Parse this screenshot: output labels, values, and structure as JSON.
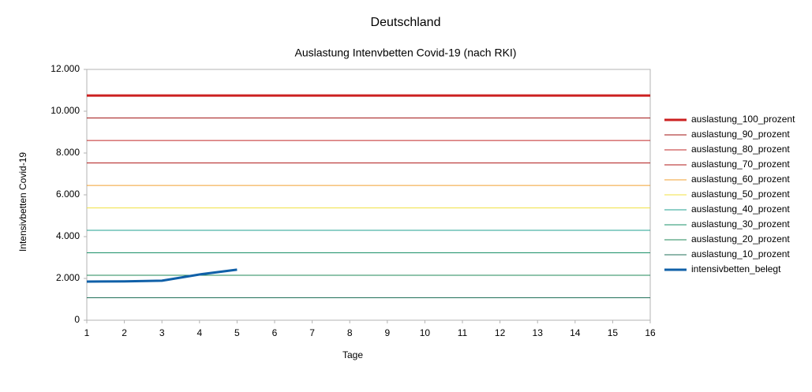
{
  "chart_data": {
    "type": "line",
    "title": "Deutschland",
    "subtitle": "Auslastung Intenvbetten Covid-19 (nach RKI)",
    "x_label": "Tage",
    "y_label": "Intensivbetten Covid-19",
    "x": [
      1,
      2,
      3,
      4,
      5,
      6,
      7,
      8,
      9,
      10,
      11,
      12,
      13,
      14,
      15,
      16
    ],
    "xlim": [
      1,
      16
    ],
    "xticks": [
      1,
      2,
      3,
      4,
      5,
      6,
      7,
      8,
      9,
      10,
      11,
      12,
      13,
      14,
      15,
      16
    ],
    "ylim": [
      0,
      12000
    ],
    "yticks": [
      0,
      {
        "value": 2000,
        "label": "2.000"
      },
      {
        "value": 4000,
        "label": "4.000"
      },
      {
        "value": 6000,
        "label": "6.000"
      },
      {
        "value": 8000,
        "label": "8.000"
      },
      {
        "value": 10000,
        "label": "10.000"
      },
      {
        "value": 12000,
        "label": "12.000"
      }
    ],
    "legend": "right",
    "series": [
      {
        "name": "auslastung_100_prozent",
        "color": "#cc2020",
        "line_width": 3,
        "values": [
          10750,
          10750,
          10750,
          10750,
          10750,
          10750,
          10750,
          10750,
          10750,
          10750,
          10750,
          10750,
          10750,
          10750,
          10750,
          10750
        ]
      },
      {
        "name": "auslastung_90_prozent",
        "color": "#a01010",
        "line_width": 1,
        "values": [
          9675,
          9675,
          9675,
          9675,
          9675,
          9675,
          9675,
          9675,
          9675,
          9675,
          9675,
          9675,
          9675,
          9675,
          9675,
          9675
        ]
      },
      {
        "name": "auslastung_80_prozent",
        "color": "#c02828",
        "line_width": 1,
        "values": [
          8600,
          8600,
          8600,
          8600,
          8600,
          8600,
          8600,
          8600,
          8600,
          8600,
          8600,
          8600,
          8600,
          8600,
          8600,
          8600
        ]
      },
      {
        "name": "auslastung_70_prozent",
        "color": "#b01818",
        "line_width": 1,
        "values": [
          7525,
          7525,
          7525,
          7525,
          7525,
          7525,
          7525,
          7525,
          7525,
          7525,
          7525,
          7525,
          7525,
          7525,
          7525,
          7525
        ]
      },
      {
        "name": "auslastung_60_prozent",
        "color": "#f0a030",
        "line_width": 1,
        "values": [
          6450,
          6450,
          6450,
          6450,
          6450,
          6450,
          6450,
          6450,
          6450,
          6450,
          6450,
          6450,
          6450,
          6450,
          6450,
          6450
        ]
      },
      {
        "name": "auslastung_50_prozent",
        "color": "#f0e040",
        "line_width": 1,
        "values": [
          5375,
          5375,
          5375,
          5375,
          5375,
          5375,
          5375,
          5375,
          5375,
          5375,
          5375,
          5375,
          5375,
          5375,
          5375,
          5375
        ]
      },
      {
        "name": "auslastung_40_prozent",
        "color": "#20a090",
        "line_width": 1,
        "values": [
          4300,
          4300,
          4300,
          4300,
          4300,
          4300,
          4300,
          4300,
          4300,
          4300,
          4300,
          4300,
          4300,
          4300,
          4300,
          4300
        ]
      },
      {
        "name": "auslastung_30_prozent",
        "color": "#1a9068",
        "line_width": 1,
        "values": [
          3225,
          3225,
          3225,
          3225,
          3225,
          3225,
          3225,
          3225,
          3225,
          3225,
          3225,
          3225,
          3225,
          3225,
          3225,
          3225
        ]
      },
      {
        "name": "auslastung_20_prozent",
        "color": "#22885a",
        "line_width": 1,
        "values": [
          2150,
          2150,
          2150,
          2150,
          2150,
          2150,
          2150,
          2150,
          2150,
          2150,
          2150,
          2150,
          2150,
          2150,
          2150,
          2150
        ]
      },
      {
        "name": "auslastung_10_prozent",
        "color": "#207058",
        "line_width": 1,
        "values": [
          1075,
          1075,
          1075,
          1075,
          1075,
          1075,
          1075,
          1075,
          1075,
          1075,
          1075,
          1075,
          1075,
          1075,
          1075,
          1075
        ]
      },
      {
        "name": "intensivbetten_belegt",
        "color": "#1060a8",
        "line_width": 3,
        "values": [
          1850,
          1860,
          1890,
          2190,
          2420,
          null,
          null,
          null,
          null,
          null,
          null,
          null,
          null,
          null,
          null,
          null
        ]
      }
    ]
  }
}
